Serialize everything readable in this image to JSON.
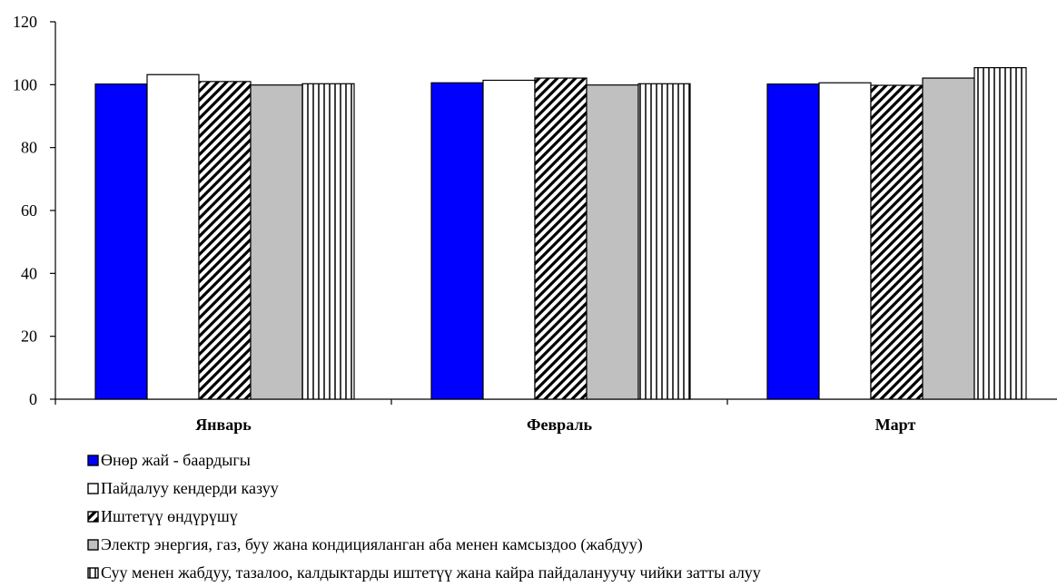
{
  "chart_data": {
    "type": "bar",
    "categories": [
      "Январь",
      "Февраль",
      "Март"
    ],
    "series": [
      {
        "name": "Өнөр жай - баардыгы",
        "values": [
          100.2,
          100.6,
          100.2
        ],
        "color": "#0000ff",
        "pattern": "solid"
      },
      {
        "name": "Пайдалуу кендерди казуу",
        "values": [
          103.2,
          101.4,
          100.6
        ],
        "color": "#ffffff",
        "pattern": "solid"
      },
      {
        "name": "Иштетүү өндүрүшү",
        "values": [
          101.0,
          102.1,
          99.8
        ],
        "color": "#000000",
        "pattern": "diagonal-stripes"
      },
      {
        "name": "Электр энергия, газ, буу жана кондицияланган аба менен камсыздоо (жабдуу)",
        "values": [
          99.9,
          99.9,
          102.1
        ],
        "color": "#c0c0c0",
        "pattern": "solid"
      },
      {
        "name": "Суу менен жабдуу, тазалоо, калдыктарды иштетүү жана кайра пайдалануучу чийки затты алуу",
        "values": [
          100.3,
          100.3,
          105.4
        ],
        "color": "#000000",
        "pattern": "vertical-stripes"
      }
    ],
    "ylim": [
      0,
      120
    ],
    "yticks": [
      0,
      20,
      40,
      60,
      80,
      100,
      120
    ],
    "title": "",
    "xlabel": "",
    "ylabel": "",
    "grid": false,
    "legend_position": "bottom"
  }
}
